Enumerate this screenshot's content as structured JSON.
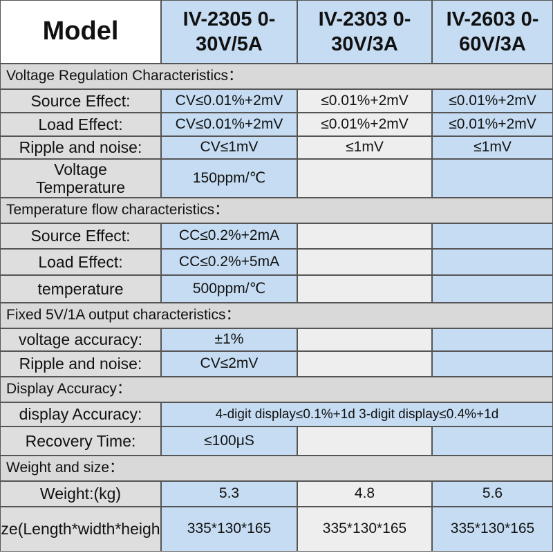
{
  "header": {
    "model": "Model",
    "columns": [
      "IV-2305 0-30V/5A",
      "IV-2303 0-30V/3A",
      "IV-2603 0-60V/3A"
    ]
  },
  "sections": [
    {
      "title": "Voltage Regulation Characteristics：",
      "rows": [
        {
          "label": "Source Effect:",
          "cells": [
            "CV≤0.01%+2mV",
            "≤0.01%+2mV",
            "≤0.01%+2mV"
          ]
        },
        {
          "label": "Load Effect:",
          "cells": [
            "CV≤0.01%+2mV",
            "≤0.01%+2mV",
            "≤0.01%+2mV"
          ]
        },
        {
          "label": "Ripple and noise:",
          "cells": [
            "CV≤1mV",
            "≤1mV",
            "≤1mV"
          ]
        },
        {
          "label": "Voltage\nTemperature",
          "cells": [
            "150ppm/℃"
          ]
        }
      ]
    },
    {
      "title": "Temperature flow characteristics：",
      "rows": [
        {
          "label": "Source Effect:",
          "cells": [
            "CC≤0.2%+2mA"
          ]
        },
        {
          "label": "Load Effect:",
          "cells": [
            "CC≤0.2%+5mA"
          ]
        },
        {
          "label": "temperature",
          "cells": [
            "500ppm/℃"
          ]
        }
      ]
    },
    {
      "title": "Fixed 5V/1A output characteristics：",
      "rows": [
        {
          "label": "voltage accuracy:",
          "cells": [
            "±1%"
          ]
        },
        {
          "label": "Ripple and noise:",
          "cells": [
            "CV≤2mV"
          ]
        }
      ]
    },
    {
      "title": "Display Accuracy：",
      "rows": [
        {
          "label": "display Accuracy:",
          "cells": [
            "4-digit display≤0.1%+1d   3-digit display≤0.4%+1d"
          ]
        },
        {
          "label": "Recovery Time:",
          "cells": [
            "≤100μS"
          ]
        }
      ]
    },
    {
      "title": "Weight and size：",
      "rows": [
        {
          "label": "Weight:(kg)",
          "cells": [
            "5.3",
            "4.8",
            "5.6"
          ]
        },
        {
          "label": "Size(Length*width*height):",
          "cells": [
            "335*130*165",
            "335*130*165",
            "335*130*165"
          ]
        }
      ]
    }
  ]
}
